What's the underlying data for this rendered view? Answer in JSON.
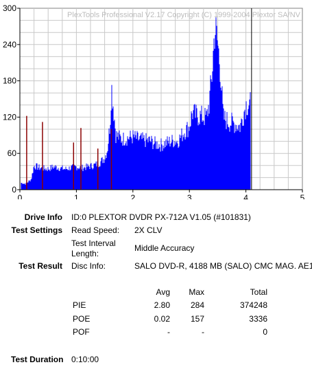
{
  "chart_data": {
    "type": "bar",
    "title": "",
    "watermark": "PlexTools Professional V2.17 Copyright (C) 1999-2004 Plextor SA/NV",
    "xlabel": "",
    "ylabel": "",
    "xlim": [
      0,
      5
    ],
    "ylim": [
      0,
      300
    ],
    "x_ticks": [
      "0",
      "1",
      "2",
      "3",
      "4",
      "5"
    ],
    "y_ticks": [
      "0",
      "60",
      "120",
      "180",
      "240",
      "300"
    ],
    "grid": true,
    "series": [
      {
        "name": "",
        "color": "#0000ff",
        "points": [
          [
            0.02,
            12
          ],
          [
            0.1,
            10
          ],
          [
            0.2,
            18
          ],
          [
            0.25,
            42
          ],
          [
            0.35,
            38
          ],
          [
            0.5,
            36
          ],
          [
            0.6,
            40
          ],
          [
            0.7,
            38
          ],
          [
            0.8,
            36
          ],
          [
            0.9,
            38
          ],
          [
            1.0,
            40
          ],
          [
            1.1,
            38
          ],
          [
            1.2,
            40
          ],
          [
            1.3,
            42
          ],
          [
            1.4,
            46
          ],
          [
            1.5,
            55
          ],
          [
            1.55,
            70
          ],
          [
            1.6,
            120
          ],
          [
            1.62,
            182
          ],
          [
            1.65,
            150
          ],
          [
            1.7,
            95
          ],
          [
            1.8,
            88
          ],
          [
            1.9,
            90
          ],
          [
            2.0,
            92
          ],
          [
            2.1,
            88
          ],
          [
            2.2,
            86
          ],
          [
            2.3,
            85
          ],
          [
            2.4,
            80
          ],
          [
            2.5,
            78
          ],
          [
            2.6,
            82
          ],
          [
            2.7,
            85
          ],
          [
            2.8,
            85
          ],
          [
            2.9,
            100
          ],
          [
            3.0,
            110
          ],
          [
            3.05,
            135
          ],
          [
            3.1,
            130
          ],
          [
            3.2,
            128
          ],
          [
            3.3,
            125
          ],
          [
            3.35,
            150
          ],
          [
            3.4,
            200
          ],
          [
            3.45,
            284
          ],
          [
            3.5,
            255
          ],
          [
            3.55,
            210
          ],
          [
            3.6,
            125
          ],
          [
            3.7,
            118
          ],
          [
            3.8,
            115
          ],
          [
            3.9,
            110
          ],
          [
            3.95,
            130
          ],
          [
            4.0,
            148
          ],
          [
            4.05,
            150
          ],
          [
            4.08,
            148
          ]
        ]
      },
      {
        "name": "",
        "color": "#8b0000",
        "points": [
          [
            0.12,
            122
          ],
          [
            0.4,
            112
          ],
          [
            0.95,
            78
          ],
          [
            1.08,
            102
          ],
          [
            1.38,
            68
          ],
          [
            1.62,
            100
          ]
        ]
      }
    ],
    "marker_x": 4.1,
    "marker_color": "#000000"
  },
  "info": {
    "drive_info_label": "Drive Info",
    "drive_info_value": "ID:0 PLEXTOR DVDR PX-712A V1.05 (#101831)",
    "test_settings_label": "Test Settings",
    "read_speed_label": "Read Speed:",
    "read_speed_value": "2X CLV",
    "interval_label_1": "Test Interval",
    "interval_label_2": "Length:",
    "interval_value": "Middle Accuracy",
    "test_result_label": "Test Result",
    "disc_info_label": "Disc Info:",
    "disc_info_value": "SALO DVD-R, 4188 MB (SALO) CMC MAG. AE1",
    "test_duration_label": "Test Duration",
    "test_duration_value": "0:10:00"
  },
  "stats": {
    "headers": {
      "avg": "Avg",
      "max": "Max",
      "total": "Total"
    },
    "rows": [
      {
        "name": "PIE",
        "avg": "2.80",
        "max": "284",
        "total": "374248"
      },
      {
        "name": "POE",
        "avg": "0.02",
        "max": "157",
        "total": "3336"
      },
      {
        "name": "POF",
        "avg": "-",
        "max": "-",
        "total": "0"
      }
    ]
  }
}
